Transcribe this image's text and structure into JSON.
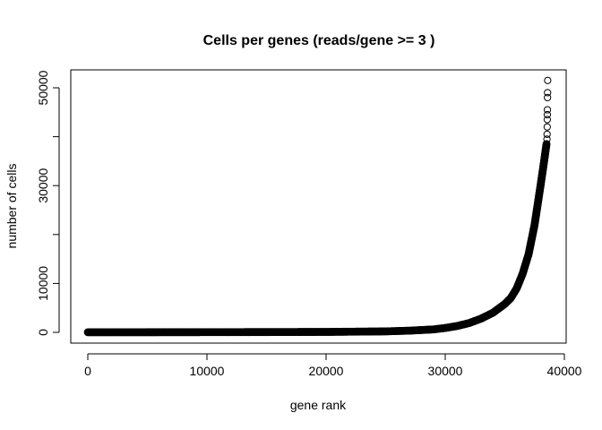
{
  "chart_data": {
    "type": "scatter",
    "title": "Cells per genes (reads/gene >= 3 )",
    "xlabel": "gene rank",
    "ylabel": "number of cells",
    "xlim": [
      0,
      40000
    ],
    "ylim": [
      0,
      50000
    ],
    "xticks": [
      0,
      10000,
      20000,
      30000,
      40000
    ],
    "yticks": [
      0,
      10000,
      20000,
      30000,
      40000,
      50000
    ],
    "ytick_labels_shown": [
      "0",
      "10000",
      "30000",
      "50000"
    ],
    "xtick_labels": [
      "0",
      "10000",
      "20000",
      "30000",
      "40000"
    ],
    "grid": false,
    "marker": "open-circle",
    "points": [
      [
        1,
        20
      ],
      [
        5000,
        30
      ],
      [
        10000,
        40
      ],
      [
        15000,
        60
      ],
      [
        20000,
        90
      ],
      [
        25000,
        200
      ],
      [
        27000,
        350
      ],
      [
        29000,
        600
      ],
      [
        30000,
        900
      ],
      [
        31000,
        1300
      ],
      [
        32000,
        1900
      ],
      [
        33000,
        2800
      ],
      [
        34000,
        4000
      ],
      [
        35000,
        5800
      ],
      [
        35500,
        7000
      ],
      [
        36000,
        9000
      ],
      [
        36500,
        12000
      ],
      [
        37000,
        16000
      ],
      [
        37500,
        22000
      ],
      [
        38000,
        30000
      ],
      [
        38300,
        35000
      ],
      [
        38500,
        38500
      ]
    ],
    "outliers": [
      [
        38540,
        39500
      ],
      [
        38550,
        40500
      ],
      [
        38560,
        42000
      ],
      [
        38565,
        43500
      ],
      [
        38570,
        44500
      ],
      [
        38575,
        45500
      ],
      [
        38585,
        48000
      ],
      [
        38590,
        49000
      ],
      [
        38600,
        51500
      ]
    ]
  }
}
